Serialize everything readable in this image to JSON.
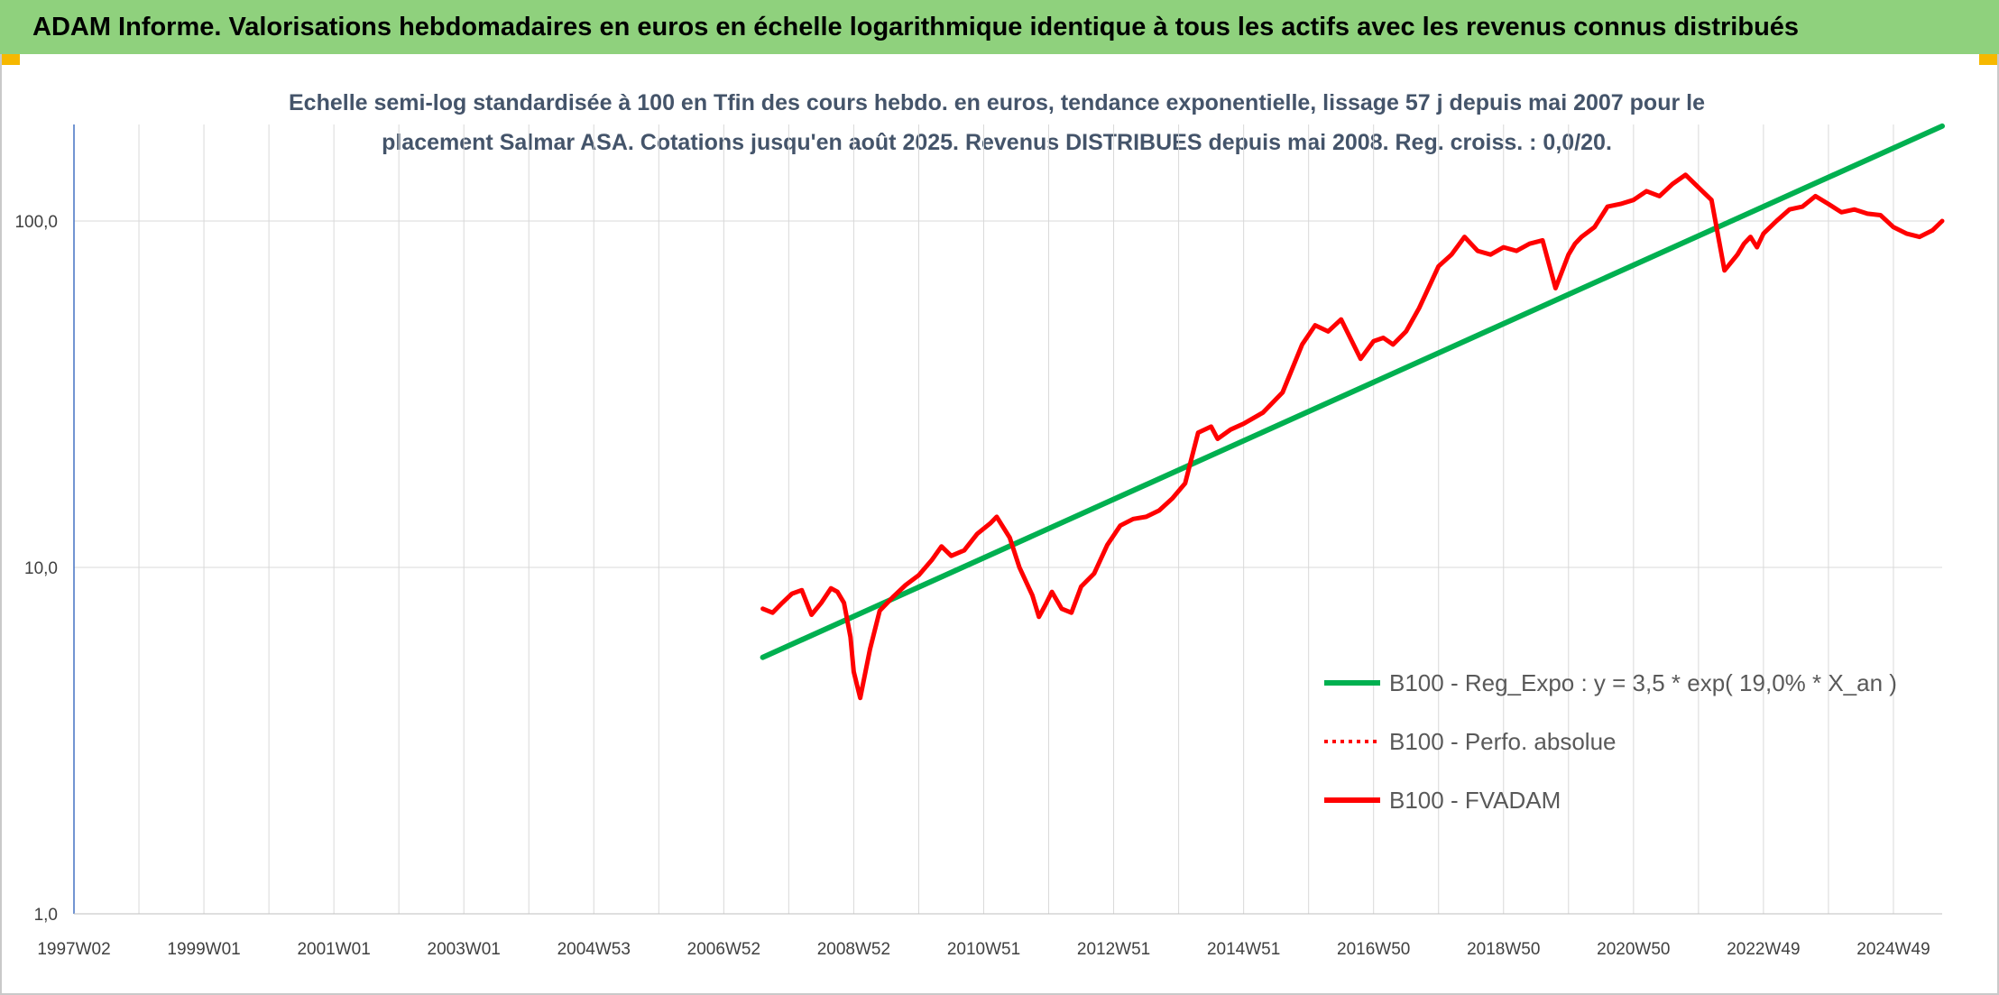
{
  "header": {
    "title": "ADAM Informe. Valorisations hebdomadaires en euros en échelle logarithmique identique à tous les actifs avec les revenus connus distribués"
  },
  "chart_data": {
    "type": "line",
    "title_line1": "Echelle semi-log standardisée à 100 en Tfin des cours hebdo. en euros, tendance exponentielle, lissage 57 j depuis mai 2007 pour le",
    "title_line2": "placement Salmar ASA. Cotations jusqu'en août 2025. Revenus DISTRIBUES depuis mai 2008. Reg. croiss. : 0,0/20.",
    "y_scale": "log",
    "ylim": [
      1,
      190
    ],
    "y_ticks": [
      {
        "value": 1,
        "label": "1,0"
      },
      {
        "value": 10,
        "label": "10,0"
      },
      {
        "value": 100,
        "label": "100,0"
      }
    ],
    "x_range": [
      1997.0,
      2025.75
    ],
    "x_ticks": [
      {
        "x": 1997.0,
        "label": "1997W02"
      },
      {
        "x": 1999.0,
        "label": "1999W01"
      },
      {
        "x": 2001.0,
        "label": "2001W01"
      },
      {
        "x": 2003.0,
        "label": "2003W01"
      },
      {
        "x": 2005.0,
        "label": "2004W53"
      },
      {
        "x": 2007.0,
        "label": "2006W52"
      },
      {
        "x": 2009.0,
        "label": "2008W52"
      },
      {
        "x": 2011.0,
        "label": "2010W51"
      },
      {
        "x": 2013.0,
        "label": "2012W51"
      },
      {
        "x": 2015.0,
        "label": "2014W51"
      },
      {
        "x": 2017.0,
        "label": "2016W50"
      },
      {
        "x": 2019.0,
        "label": "2018W50"
      },
      {
        "x": 2021.0,
        "label": "2020W50"
      },
      {
        "x": 2023.0,
        "label": "2022W49"
      },
      {
        "x": 2025.0,
        "label": "2024W49"
      }
    ],
    "grid": true,
    "legend_position": "bottom-right",
    "series": [
      {
        "name": "B100 - Reg_Expo : y = 3,5 * exp( 19,0% *  X_an )",
        "color": "#00b050",
        "style": "solid",
        "x": [
          2007.6,
          2025.75
        ],
        "y": [
          5.5,
          188
        ]
      },
      {
        "name": "B100 - Perfo. absolue",
        "color": "#ff0000",
        "style": "dotted",
        "x": [],
        "y": []
      },
      {
        "name": "B100 - FVADAM",
        "color": "#ff0000",
        "style": "solid",
        "x": [
          2007.6,
          2007.75,
          2007.9,
          2008.05,
          2008.2,
          2008.35,
          2008.5,
          2008.65,
          2008.75,
          2008.85,
          2008.95,
          2009.0,
          2009.1,
          2009.25,
          2009.4,
          2009.6,
          2009.8,
          2010.0,
          2010.2,
          2010.35,
          2010.5,
          2010.7,
          2010.9,
          2011.1,
          2011.2,
          2011.4,
          2011.55,
          2011.75,
          2011.85,
          2011.95,
          2012.05,
          2012.2,
          2012.35,
          2012.5,
          2012.7,
          2012.9,
          2013.1,
          2013.3,
          2013.5,
          2013.7,
          2013.9,
          2014.1,
          2014.3,
          2014.5,
          2014.6,
          2014.8,
          2015.0,
          2015.3,
          2015.6,
          2015.9,
          2016.1,
          2016.3,
          2016.5,
          2016.8,
          2017.0,
          2017.15,
          2017.3,
          2017.5,
          2017.7,
          2018.0,
          2018.2,
          2018.4,
          2018.6,
          2018.8,
          2019.0,
          2019.2,
          2019.4,
          2019.6,
          2019.8,
          2020.0,
          2020.1,
          2020.2,
          2020.4,
          2020.6,
          2020.8,
          2021.0,
          2021.2,
          2021.4,
          2021.6,
          2021.8,
          2022.0,
          2022.2,
          2022.4,
          2022.6,
          2022.7,
          2022.8,
          2022.9,
          2023.0,
          2023.2,
          2023.4,
          2023.6,
          2023.8,
          2024.0,
          2024.2,
          2024.4,
          2024.6,
          2024.8,
          2025.0,
          2025.2,
          2025.4,
          2025.6,
          2025.75
        ],
        "y": [
          7.6,
          7.4,
          7.9,
          8.4,
          8.6,
          7.3,
          7.9,
          8.7,
          8.5,
          7.9,
          6.3,
          5.0,
          4.2,
          5.8,
          7.5,
          8.2,
          8.9,
          9.5,
          10.5,
          11.5,
          10.8,
          11.2,
          12.5,
          13.4,
          14.0,
          12.2,
          10.0,
          8.3,
          7.2,
          7.8,
          8.5,
          7.6,
          7.4,
          8.8,
          9.6,
          11.6,
          13.2,
          13.8,
          14.0,
          14.6,
          15.8,
          17.5,
          24.5,
          25.5,
          23.5,
          25.0,
          26.0,
          28.0,
          32.0,
          44.0,
          50.0,
          48.0,
          52.0,
          40.0,
          45.0,
          46.0,
          44.0,
          48.0,
          56.0,
          74.0,
          80.0,
          90.0,
          82.0,
          80.0,
          84.0,
          82.0,
          86.0,
          88.0,
          64.0,
          80.0,
          86.0,
          90.0,
          96.0,
          110.0,
          112.0,
          115.0,
          122.0,
          118.0,
          128.0,
          136.0,
          125.0,
          115.0,
          72.0,
          80.0,
          86.0,
          90.0,
          84.0,
          92.0,
          100.0,
          108.0,
          110.0,
          118.0,
          112.0,
          106.0,
          108.0,
          105.0,
          104.0,
          96.0,
          92.0,
          90.0,
          94.0,
          100.0
        ]
      }
    ]
  }
}
